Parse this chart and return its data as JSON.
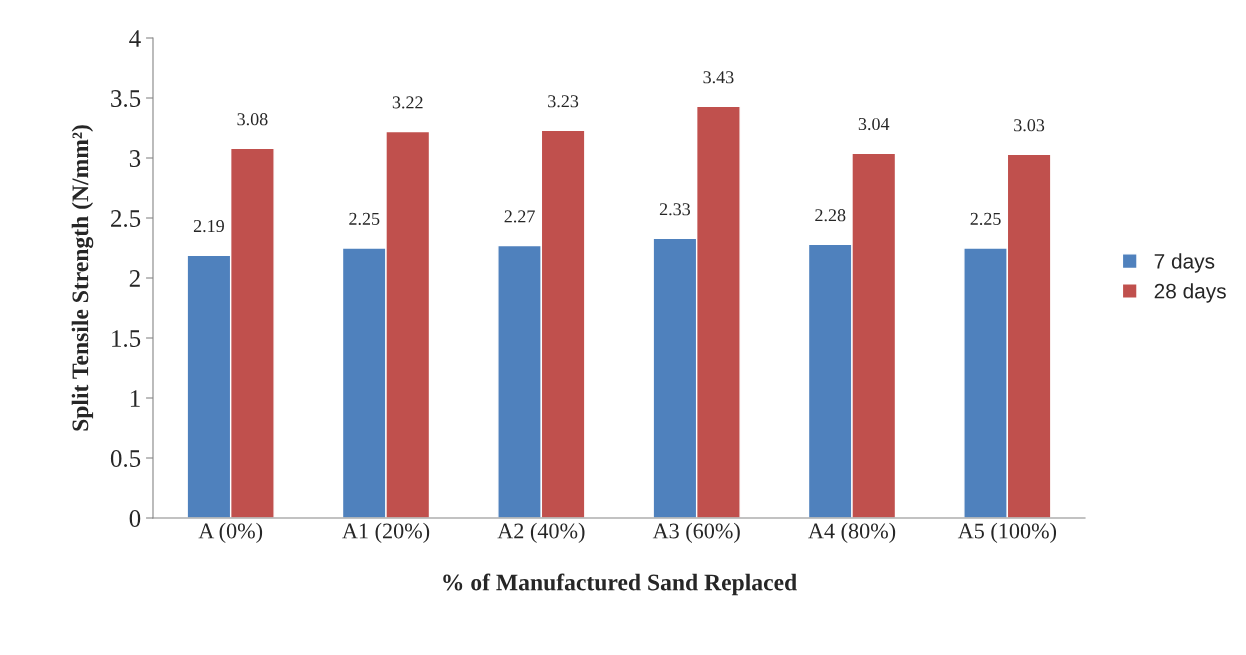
{
  "chart_data": {
    "type": "bar",
    "xlabel": "% of Manufactured Sand Replaced",
    "ylabel": "Split Tensile Strength (N/mm²)",
    "categories": [
      "A (0%)",
      "A1 (20%)",
      "A2 (40%)",
      "A3 (60%)",
      "A4 (80%)",
      "A5 (100%)"
    ],
    "series": [
      {
        "name": "7 days",
        "color": "#4f81bd",
        "values": [
          2.19,
          2.25,
          2.27,
          2.33,
          2.28,
          2.25
        ]
      },
      {
        "name": "28 days",
        "color": "#c0504d",
        "values": [
          3.08,
          3.22,
          3.23,
          3.43,
          3.04,
          3.03
        ]
      }
    ],
    "ylim": [
      0,
      4
    ],
    "yticks": [
      0,
      0.5,
      1,
      1.5,
      2,
      2.5,
      3,
      3.5,
      4
    ],
    "data_labels": true,
    "grid": false,
    "legend": "right"
  }
}
